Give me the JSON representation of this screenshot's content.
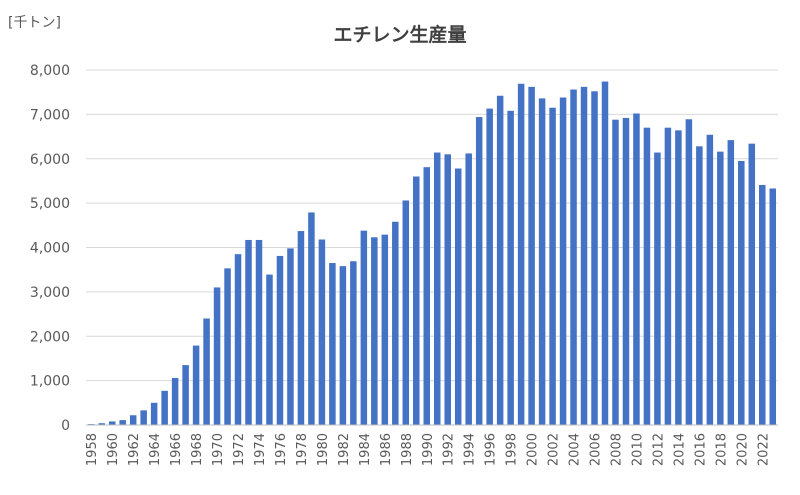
{
  "chart_data": {
    "type": "bar",
    "title": "エチレン生産量",
    "unit_label": "[千トン]",
    "ylim": [
      0,
      8000
    ],
    "y_ticks": [
      0,
      1000,
      2000,
      3000,
      4000,
      5000,
      6000,
      7000,
      8000
    ],
    "y_tick_labels": [
      "0",
      "1,000",
      "2,000",
      "3,000",
      "4,000",
      "5,000",
      "6,000",
      "7,000",
      "8,000"
    ],
    "grid": true,
    "bar_color": "#4472C4",
    "categories": [
      "1958",
      "1959",
      "1960",
      "1961",
      "1962",
      "1963",
      "1964",
      "1965",
      "1966",
      "1967",
      "1968",
      "1969",
      "1970",
      "1971",
      "1972",
      "1973",
      "1974",
      "1975",
      "1976",
      "1977",
      "1978",
      "1979",
      "1980",
      "1981",
      "1982",
      "1983",
      "1984",
      "1985",
      "1986",
      "1987",
      "1988",
      "1989",
      "1990",
      "1991",
      "1992",
      "1993",
      "1994",
      "1995",
      "1996",
      "1997",
      "1998",
      "1999",
      "2000",
      "2001",
      "2002",
      "2003",
      "2004",
      "2005",
      "2006",
      "2007",
      "2008",
      "2009",
      "2010",
      "2011",
      "2012",
      "2013",
      "2014",
      "2015",
      "2016",
      "2017",
      "2018",
      "2019",
      "2020",
      "2021",
      "2022",
      "2023"
    ],
    "x_tick_labels": [
      "1958",
      "1960",
      "1962",
      "1964",
      "1966",
      "1968",
      "1970",
      "1972",
      "1974",
      "1976",
      "1978",
      "1980",
      "1982",
      "1984",
      "1986",
      "1988",
      "1990",
      "1992",
      "1994",
      "1996",
      "1998",
      "2000",
      "2002",
      "2004",
      "2006",
      "2008",
      "2010",
      "2012",
      "2014",
      "2016",
      "2018",
      "2020",
      "2022"
    ],
    "values": [
      20,
      40,
      80,
      110,
      220,
      330,
      500,
      770,
      1060,
      1350,
      1790,
      2400,
      3100,
      3530,
      3850,
      4170,
      4170,
      3390,
      3810,
      3980,
      4370,
      4790,
      4180,
      3650,
      3580,
      3690,
      4380,
      4230,
      4290,
      4580,
      5060,
      5600,
      5810,
      6140,
      6100,
      5780,
      6120,
      6940,
      7130,
      7420,
      7080,
      7690,
      7620,
      7360,
      7150,
      7380,
      7560,
      7620,
      7520,
      7740,
      6880,
      6920,
      7020,
      6700,
      6140,
      6700,
      6640,
      6890,
      6280,
      6540,
      6160,
      6420,
      5950,
      6340,
      5410,
      5330
    ]
  }
}
